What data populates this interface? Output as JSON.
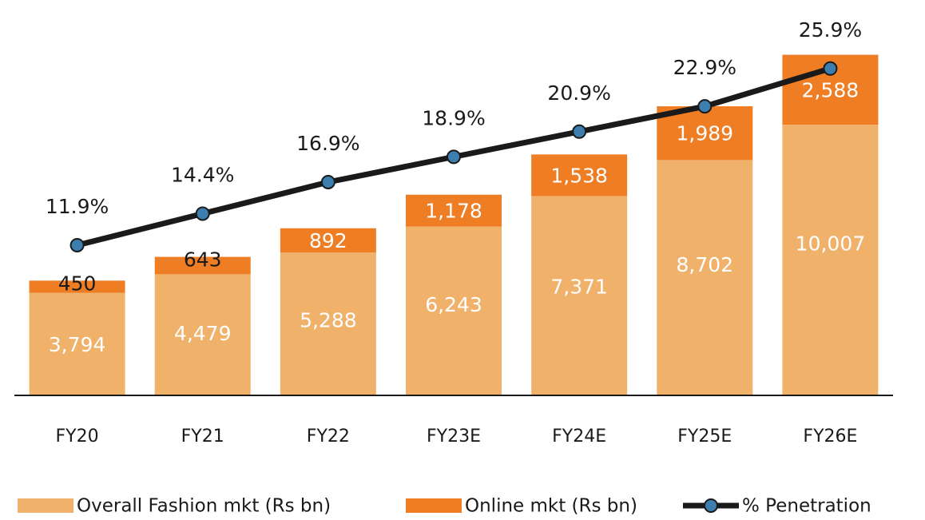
{
  "chart_data": {
    "type": "bar",
    "stacked": true,
    "categories": [
      "FY20",
      "FY21",
      "FY22",
      "FY23E",
      "FY24E",
      "FY25E",
      "FY26E"
    ],
    "series": [
      {
        "name": "Overall Fashion mkt (Rs bn)",
        "color": "#f0b26b",
        "values": [
          3794,
          4479,
          5288,
          6243,
          7371,
          8702,
          10007
        ],
        "value_labels": [
          "3,794",
          "4,479",
          "5,288",
          "6,243",
          "7,371",
          "8,702",
          "10,007"
        ]
      },
      {
        "name": "Online mkt (Rs bn)",
        "color": "#ee7d23",
        "values": [
          450,
          643,
          892,
          1178,
          1538,
          1989,
          2588
        ],
        "value_labels": [
          "450",
          "643",
          "892",
          "1,178",
          "1,538",
          "1,989",
          "2,588"
        ]
      },
      {
        "name": "% Penetration",
        "type": "line",
        "axis": "y2",
        "color": "#1a1a1a",
        "marker_color": "#3c7fae",
        "values": [
          11.9,
          14.4,
          16.9,
          18.9,
          20.9,
          22.9,
          25.9
        ],
        "value_labels": [
          "11.9%",
          "14.4%",
          "16.9%",
          "18.9%",
          "20.9%",
          "22.9%",
          "25.9%"
        ]
      }
    ],
    "ylim": [
      0,
      14000
    ],
    "y2lim": [
      0,
      30
    ],
    "legend": "bottom"
  }
}
